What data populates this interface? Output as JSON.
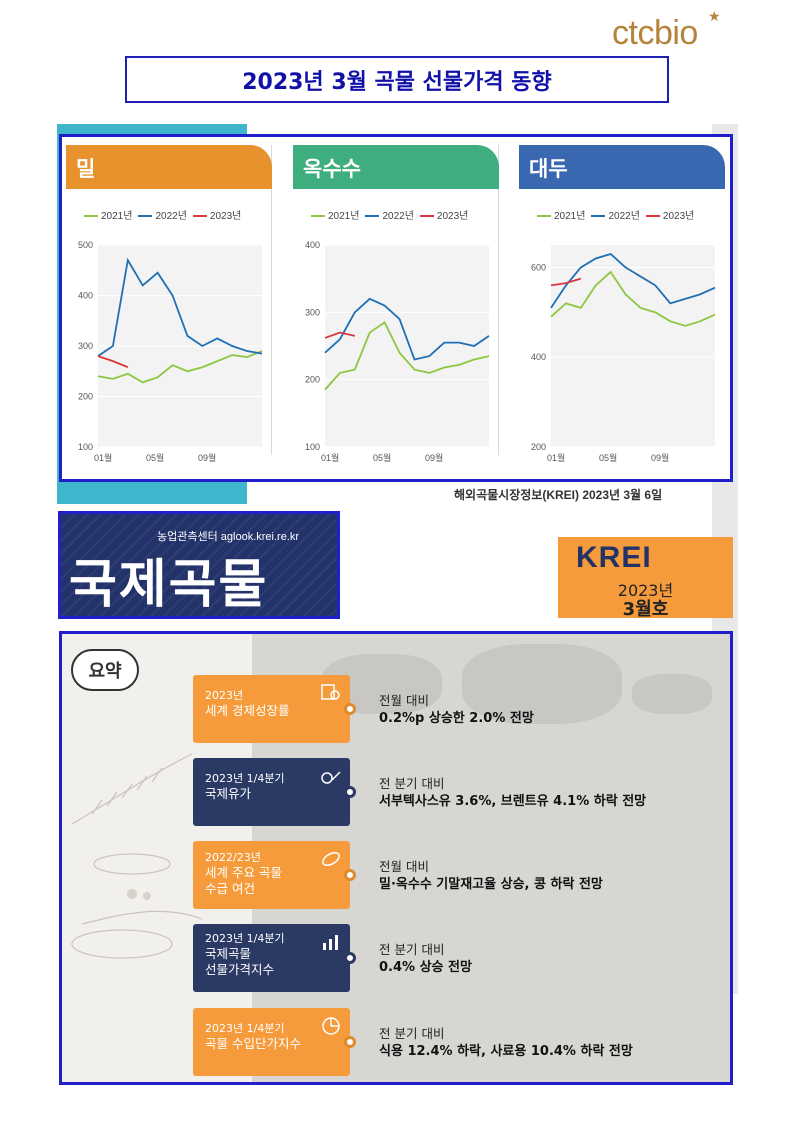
{
  "logo": {
    "text": "ctcbio"
  },
  "title": "2023년 3월 곡물 선물가격 동향",
  "legend": [
    "2021년",
    "2022년",
    "2023년"
  ],
  "colors": {
    "y2021": "#8dc63f",
    "y2022": "#1f6fb4",
    "y2023": "#d9363e",
    "wheat_tab": "#e8922e",
    "corn_tab": "#3fae7f",
    "soy_tab": "#3a68b0"
  },
  "chart_data": [
    {
      "type": "line",
      "title": "밀",
      "x_ticks": [
        "01월",
        "05월",
        "09월"
      ],
      "y_ticks": [
        100,
        200,
        300,
        400,
        500
      ],
      "ylim": [
        100,
        500
      ],
      "series": [
        {
          "name": "2021년",
          "values": [
            240,
            235,
            245,
            228,
            238,
            262,
            250,
            258,
            270,
            282,
            278,
            290
          ]
        },
        {
          "name": "2022년",
          "values": [
            280,
            300,
            470,
            420,
            445,
            400,
            320,
            300,
            315,
            300,
            290,
            285
          ]
        },
        {
          "name": "2023년",
          "values": [
            280,
            270,
            258
          ]
        }
      ]
    },
    {
      "type": "line",
      "title": "옥수수",
      "x_ticks": [
        "01월",
        "05월",
        "09월"
      ],
      "y_ticks": [
        100,
        200,
        300,
        400
      ],
      "ylim": [
        100,
        400
      ],
      "series": [
        {
          "name": "2021년",
          "values": [
            185,
            210,
            215,
            270,
            285,
            240,
            215,
            210,
            218,
            222,
            230,
            235
          ]
        },
        {
          "name": "2022년",
          "values": [
            240,
            260,
            300,
            320,
            310,
            290,
            230,
            235,
            255,
            255,
            250,
            265
          ]
        },
        {
          "name": "2023년",
          "values": [
            262,
            270,
            265
          ]
        }
      ]
    },
    {
      "type": "line",
      "title": "대두",
      "x_ticks": [
        "01월",
        "05월",
        "09월"
      ],
      "y_ticks": [
        200,
        400,
        600
      ],
      "ylim": [
        200,
        650
      ],
      "series": [
        {
          "name": "2021년",
          "values": [
            490,
            520,
            510,
            560,
            590,
            540,
            510,
            500,
            480,
            470,
            480,
            495
          ]
        },
        {
          "name": "2022년",
          "values": [
            510,
            560,
            600,
            620,
            630,
            600,
            580,
            560,
            520,
            530,
            540,
            555
          ]
        },
        {
          "name": "2023년",
          "values": [
            560,
            565,
            575
          ]
        }
      ]
    }
  ],
  "credit": "해외곡물시장정보(KREI)  2023년 3월 6일",
  "banner": {
    "sub": "농업관측센터  aglook.krei.re.kr",
    "big": "국제곡물"
  },
  "krei": {
    "name": "KREI",
    "year": "2023년",
    "issue": "3월호"
  },
  "summary": {
    "label": "요약",
    "rows": [
      {
        "line1": "2023년",
        "line2": "세계 경제성장률",
        "caption": "전월 대비",
        "value": "0.2%p 상승한 2.0% 전망",
        "icon": "magnifier-chart-icon",
        "style": "orange"
      },
      {
        "line1": "2023년 1/4분기",
        "line2": "국제유가",
        "caption": "전 분기 대비",
        "value": "서부텍사스유 3.6%, 브렌트유 4.1% 하락 전망",
        "icon": "oil-money-icon",
        "style": "navy"
      },
      {
        "line1": "2022/23년",
        "line2": "세계 주요 곡물\n수급 여건",
        "caption": "전월 대비",
        "value": "밀·옥수수 기말재고율 상승, 콩 하락 전망",
        "icon": "bean-icon",
        "style": "orange"
      },
      {
        "line1": "2023년 1/4분기",
        "line2": "국제곡물\n선물가격지수",
        "caption": "전 분기 대비",
        "value": "0.4% 상승 전망",
        "icon": "bar-chart-icon",
        "style": "navy"
      },
      {
        "line1": "2023년 1/4분기",
        "line2": "곡물 수입단가지수",
        "caption": "전 분기 대비",
        "value": "식용 12.4% 하락, 사료용 10.4% 하락 전망",
        "icon": "pie-chart-icon",
        "style": "orange"
      }
    ]
  }
}
